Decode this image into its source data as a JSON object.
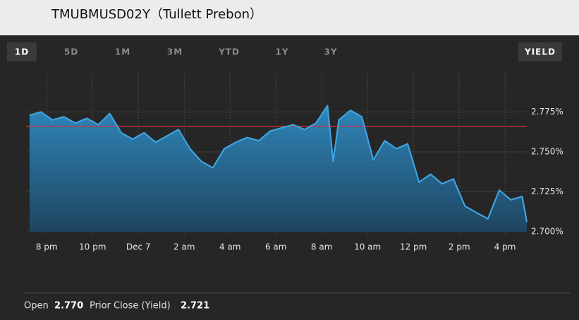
{
  "header": {
    "title": "TMUBMUSD02Y（Tullett Prebon）"
  },
  "tabs": [
    "1D",
    "5D",
    "1M",
    "3M",
    "YTD",
    "1Y",
    "3Y"
  ],
  "active_tab": "1D",
  "toggle": "YIELD",
  "chart_data": {
    "type": "area",
    "x": [
      19.25,
      19.75,
      20.25,
      20.75,
      21.25,
      21.75,
      22.25,
      22.75,
      23.25,
      23.75,
      24.25,
      24.75,
      25.25,
      25.75,
      26.25,
      26.75,
      27.25,
      27.75,
      28.25,
      28.75,
      29.25,
      29.75,
      30.25,
      30.75,
      31.25,
      31.75,
      32.25,
      32.5,
      32.75,
      33.25,
      33.75,
      34.25,
      34.75,
      35.25,
      35.75,
      36.25,
      36.75,
      37.25,
      37.75,
      38.25,
      38.75,
      39.25,
      39.75,
      40.25,
      40.75,
      40.95
    ],
    "values": [
      2.773,
      2.775,
      2.77,
      2.772,
      2.768,
      2.771,
      2.767,
      2.774,
      2.762,
      2.758,
      2.762,
      2.756,
      2.76,
      2.764,
      2.752,
      2.744,
      2.74,
      2.752,
      2.756,
      2.759,
      2.757,
      2.763,
      2.765,
      2.767,
      2.764,
      2.768,
      2.779,
      2.744,
      2.77,
      2.776,
      2.772,
      2.745,
      2.757,
      2.752,
      2.755,
      2.731,
      2.736,
      2.73,
      2.733,
      2.716,
      2.712,
      2.708,
      2.726,
      2.72,
      2.722,
      2.706
    ],
    "color": "#3ea3e0",
    "reference_line": 2.766,
    "reference_color": "#d8323c",
    "xlim": [
      19.1,
      40.95
    ],
    "xticks": [
      {
        "value": 20,
        "label": "8 pm"
      },
      {
        "value": 22,
        "label": "10 pm"
      },
      {
        "value": 24,
        "label": "Dec 7"
      },
      {
        "value": 26,
        "label": "2 am"
      },
      {
        "value": 28,
        "label": "4 am"
      },
      {
        "value": 30,
        "label": "6 am"
      },
      {
        "value": 32,
        "label": "8 am"
      },
      {
        "value": 34,
        "label": "10 am"
      },
      {
        "value": 36,
        "label": "12 pm"
      },
      {
        "value": 38,
        "label": "2 pm"
      },
      {
        "value": 40,
        "label": "4 pm"
      }
    ],
    "ylim": [
      2.7,
      2.8
    ],
    "yticks": [
      {
        "value": 2.7,
        "label": "2.700%"
      },
      {
        "value": 2.725,
        "label": "2.725%"
      },
      {
        "value": 2.75,
        "label": "2.750%"
      },
      {
        "value": 2.775,
        "label": "2.775%"
      }
    ],
    "grid": true
  },
  "footer": {
    "open_label": "Open",
    "open_value": "2.770",
    "prior_label": "Prior Close (Yield)",
    "prior_value": "2.721"
  }
}
